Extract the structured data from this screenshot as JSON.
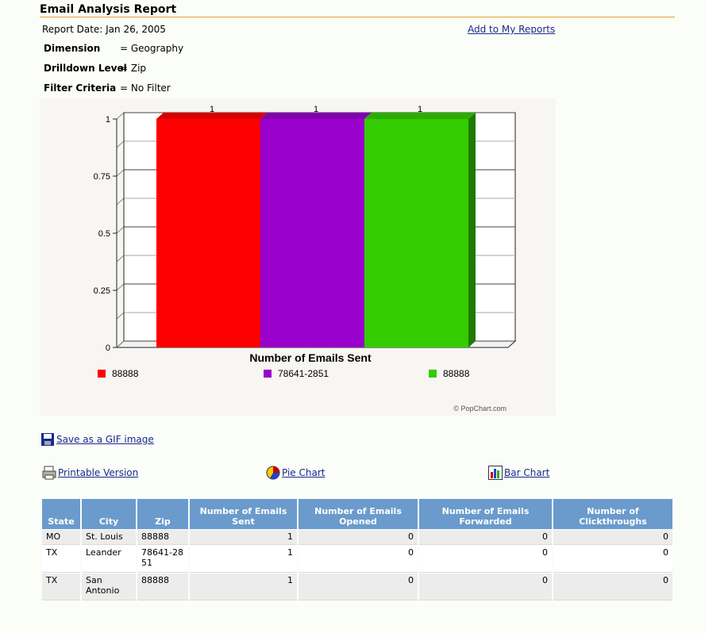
{
  "report": {
    "title": "Email Analysis Report",
    "date_text": "Report Date: Jan 26, 2005",
    "add_link": "Add to My Reports",
    "dimension_label": "Dimension",
    "dimension_value": "= Geography",
    "drilldown_label": "Drilldown Level",
    "drilldown_value": "= Zip",
    "filter_label": "Filter Criteria",
    "filter_value": "= No Filter"
  },
  "chart_data": {
    "type": "bar",
    "title": "",
    "xlabel": "Number of Emails Sent",
    "ylabel": "",
    "ylim": [
      0,
      1
    ],
    "yticks": [
      "1",
      "0.75",
      "0.5",
      "0.25",
      "0"
    ],
    "categories": [
      "88888",
      "78641-2851",
      "88888"
    ],
    "values": [
      1,
      1,
      1
    ],
    "data_labels": [
      "1",
      "1",
      "1"
    ],
    "colors": [
      "#ff0000",
      "#9900cc",
      "#33cc00"
    ],
    "legend_position": "bottom",
    "credit": "© PopChart.com",
    "grid": true
  },
  "tools": {
    "save_gif": "Save as a GIF image",
    "printable": "Printable Version",
    "pie_chart": "Pie Chart",
    "bar_chart": "Bar Chart"
  },
  "table": {
    "headers": [
      "State",
      "City",
      "Zip",
      "Number of Emails Sent",
      "Number of Emails Opened",
      "Number of Emails Forwarded",
      "Number of Clickthroughs"
    ],
    "rows": [
      [
        "MO",
        "St. Louis",
        "88888",
        "1",
        "0",
        "0",
        "0"
      ],
      [
        "TX",
        "Leander",
        "78641-2851",
        "1",
        "0",
        "0",
        "0"
      ],
      [
        "TX",
        "San Antonio",
        "88888",
        "1",
        "0",
        "0",
        "0"
      ]
    ]
  }
}
